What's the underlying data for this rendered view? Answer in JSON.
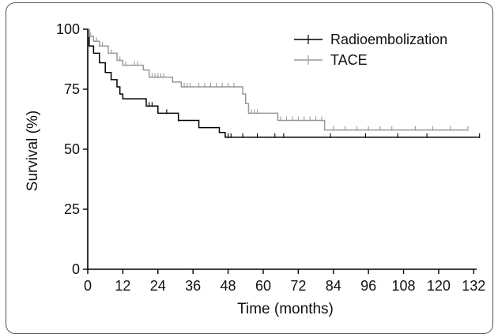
{
  "chart_data": {
    "type": "line",
    "title": "",
    "xlabel": "Time (months)",
    "ylabel": "Survival (%)",
    "xlim": [
      0,
      133
    ],
    "ylim": [
      0,
      100
    ],
    "xticks": [
      0,
      12,
      24,
      36,
      48,
      60,
      72,
      84,
      96,
      108,
      120,
      132
    ],
    "yticks": [
      0,
      25,
      50,
      75,
      100
    ],
    "legend_position": "top-right",
    "grid": false,
    "series": [
      {
        "name": "Radioembolization",
        "color": "#000000",
        "step_points": [
          [
            0,
            100
          ],
          [
            0.5,
            93
          ],
          [
            2,
            90
          ],
          [
            4,
            86
          ],
          [
            6,
            82
          ],
          [
            8,
            79
          ],
          [
            10,
            76
          ],
          [
            11,
            73
          ],
          [
            12,
            71
          ],
          [
            20,
            68
          ],
          [
            24,
            65
          ],
          [
            31,
            62
          ],
          [
            38,
            59
          ],
          [
            45,
            57
          ],
          [
            47,
            55
          ],
          [
            134,
            55
          ]
        ],
        "censored_x": [
          21,
          22,
          27,
          31,
          48,
          49,
          53,
          58,
          64,
          67,
          83,
          95,
          106,
          116,
          134
        ]
      },
      {
        "name": "TACE",
        "color": "#999999",
        "step_points": [
          [
            0,
            100
          ],
          [
            0.5,
            97
          ],
          [
            2,
            95
          ],
          [
            4,
            93
          ],
          [
            7,
            90
          ],
          [
            10,
            87
          ],
          [
            12,
            85
          ],
          [
            19,
            83
          ],
          [
            21,
            80
          ],
          [
            29,
            78
          ],
          [
            32,
            76
          ],
          [
            53,
            73
          ],
          [
            54,
            69
          ],
          [
            55,
            65
          ],
          [
            65,
            62
          ],
          [
            81,
            58
          ],
          [
            130,
            58
          ]
        ],
        "censored_x": [
          1,
          3,
          5,
          8,
          11,
          13,
          16,
          17,
          22,
          23,
          24,
          25,
          26,
          32,
          33,
          34,
          35,
          38,
          40,
          42,
          44,
          46,
          48,
          50,
          55,
          56,
          57,
          58,
          66,
          68,
          70,
          72,
          74,
          76,
          78,
          80,
          84,
          88,
          92,
          96,
          100,
          104,
          112,
          118,
          124,
          130
        ]
      }
    ]
  }
}
